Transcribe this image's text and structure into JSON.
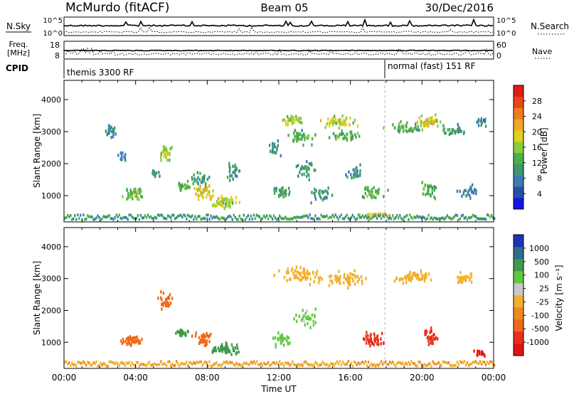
{
  "header": {
    "station": "McMurdo (fitACF)",
    "beam": "Beam 05",
    "date": "30/Dec/2016"
  },
  "chart_data": [
    {
      "panel": "noise",
      "type": "line",
      "left_label": "N.Sky",
      "right_label": "N.Search",
      "left_ticks": [
        "10^5",
        "10^0"
      ],
      "right_ticks": [
        "10^5",
        "10^0"
      ]
    },
    {
      "panel": "frequency",
      "type": "line",
      "left_label": "Freq.",
      "left_unit": "[MHz]",
      "left_ticks": [
        "18",
        "8"
      ],
      "right_label": "Nave",
      "right_ticks": [
        "60",
        "0"
      ]
    },
    {
      "panel": "cpid",
      "type": "table",
      "label": "CPID",
      "segments": [
        {
          "start_h": 0,
          "end_h": 18,
          "text": "themis 3300 RF"
        },
        {
          "start_h": 18,
          "end_h": 24,
          "text": "normal (fast) 151 RF"
        }
      ]
    },
    {
      "panel": "power",
      "type": "heatmap",
      "ylabel": "Slant Range [km]",
      "ylim": [
        180,
        4600
      ],
      "y_ticks": [
        1000,
        2000,
        3000,
        4000
      ],
      "xlim": [
        0,
        24
      ],
      "colorbar": {
        "label": "Power [dB]",
        "ticks": [
          4,
          8,
          12,
          16,
          20,
          24,
          28
        ],
        "colors": [
          "#1414e6",
          "#2850a8",
          "#3c7cb4",
          "#3e9670",
          "#4ab04a",
          "#8ccc3c",
          "#e0d020",
          "#f0a828",
          "#f07c1c",
          "#e84818",
          "#e01e14"
        ]
      },
      "clusters": [
        {
          "t": 2.6,
          "r": 3000,
          "dt": 0.5,
          "dr": 250,
          "v": 8,
          "n": 20
        },
        {
          "t": 3.2,
          "r": 2200,
          "dt": 0.4,
          "dr": 200,
          "v": 8,
          "n": 12
        },
        {
          "t": 3.8,
          "r": 1050,
          "dt": 0.8,
          "dr": 250,
          "v": 13,
          "n": 45
        },
        {
          "t": 5.6,
          "r": 2300,
          "dt": 0.5,
          "dr": 350,
          "v": 15,
          "n": 30
        },
        {
          "t": 5.0,
          "r": 1700,
          "dt": 0.4,
          "dr": 200,
          "v": 9,
          "n": 12
        },
        {
          "t": 6.6,
          "r": 1300,
          "dt": 0.6,
          "dr": 200,
          "v": 12,
          "n": 25
        },
        {
          "t": 7.8,
          "r": 1100,
          "dt": 0.8,
          "dr": 350,
          "v": 18,
          "n": 45
        },
        {
          "t": 7.5,
          "r": 1500,
          "dt": 0.7,
          "dr": 300,
          "v": 10,
          "n": 25
        },
        {
          "t": 9.0,
          "r": 800,
          "dt": 1.0,
          "dr": 250,
          "v": 16,
          "n": 60
        },
        {
          "t": 9.5,
          "r": 1800,
          "dt": 0.6,
          "dr": 500,
          "v": 9,
          "n": 25
        },
        {
          "t": 11.7,
          "r": 2500,
          "dt": 0.6,
          "dr": 300,
          "v": 9,
          "n": 20
        },
        {
          "t": 12.1,
          "r": 1100,
          "dt": 0.8,
          "dr": 300,
          "v": 11,
          "n": 30
        },
        {
          "t": 12.8,
          "r": 3350,
          "dt": 0.9,
          "dr": 200,
          "v": 16,
          "n": 40
        },
        {
          "t": 13.2,
          "r": 2850,
          "dt": 1.0,
          "dr": 300,
          "v": 12,
          "n": 40
        },
        {
          "t": 13.5,
          "r": 1800,
          "dt": 0.8,
          "dr": 400,
          "v": 10,
          "n": 30
        },
        {
          "t": 14.5,
          "r": 1000,
          "dt": 1.0,
          "dr": 300,
          "v": 9,
          "n": 30
        },
        {
          "t": 15.3,
          "r": 3300,
          "dt": 1.3,
          "dr": 250,
          "v": 17,
          "n": 55
        },
        {
          "t": 15.8,
          "r": 2900,
          "dt": 1.2,
          "dr": 200,
          "v": 12,
          "n": 35
        },
        {
          "t": 16.2,
          "r": 1700,
          "dt": 0.7,
          "dr": 350,
          "v": 9,
          "n": 25
        },
        {
          "t": 17.2,
          "r": 1100,
          "dt": 0.9,
          "dr": 300,
          "v": 12,
          "n": 40
        },
        {
          "t": 19.0,
          "r": 3100,
          "dt": 1.3,
          "dr": 250,
          "v": 12,
          "n": 45
        },
        {
          "t": 20.2,
          "r": 3300,
          "dt": 1.0,
          "dr": 250,
          "v": 18,
          "n": 45
        },
        {
          "t": 20.4,
          "r": 1200,
          "dt": 0.6,
          "dr": 350,
          "v": 12,
          "n": 30
        },
        {
          "t": 21.7,
          "r": 3050,
          "dt": 1.0,
          "dr": 200,
          "v": 10,
          "n": 30
        },
        {
          "t": 22.5,
          "r": 1100,
          "dt": 1.0,
          "dr": 300,
          "v": 8,
          "n": 25
        },
        {
          "t": 23.3,
          "r": 3300,
          "dt": 0.6,
          "dr": 200,
          "v": 8,
          "n": 15
        },
        {
          "t": 17.4,
          "r": 400,
          "dt": 1.2,
          "dr": 60,
          "v": 20,
          "n": 25
        }
      ]
    },
    {
      "panel": "velocity",
      "type": "heatmap",
      "ylabel": "Slant Range [km]",
      "ylim": [
        180,
        4600
      ],
      "y_ticks": [
        1000,
        2000,
        3000,
        4000
      ],
      "xlim": [
        0,
        24
      ],
      "xlabel": "Time UT",
      "x_ticks": [
        "00:00",
        "04:00",
        "08:00",
        "12:00",
        "16:00",
        "20:00",
        "00:00"
      ],
      "colorbar": {
        "label": "Velocity [m s⁻¹]",
        "ticks": [
          "1000",
          "500",
          "100",
          "25",
          "-25",
          "-100",
          "-500",
          "-1000"
        ],
        "colors": [
          "#1e32b4",
          "#2e6e8a",
          "#3e9a4e",
          "#60c83c",
          "#c8c8c8",
          "#f0b030",
          "#f08820",
          "#f06818",
          "#e83018",
          "#e01414"
        ]
      },
      "clusters": [
        {
          "t": 3.8,
          "r": 1050,
          "dt": 0.8,
          "dr": 250,
          "v": -150,
          "n": 45
        },
        {
          "t": 5.6,
          "r": 2300,
          "dt": 0.5,
          "dr": 350,
          "v": -200,
          "n": 30
        },
        {
          "t": 6.6,
          "r": 1300,
          "dt": 0.6,
          "dr": 200,
          "v": 120,
          "n": 25
        },
        {
          "t": 7.8,
          "r": 1100,
          "dt": 0.8,
          "dr": 350,
          "v": -180,
          "n": 40
        },
        {
          "t": 9.0,
          "r": 800,
          "dt": 1.0,
          "dr": 250,
          "v": 150,
          "n": 55
        },
        {
          "t": 12.1,
          "r": 1100,
          "dt": 0.8,
          "dr": 300,
          "v": 80,
          "n": 30
        },
        {
          "t": 13.5,
          "r": 1800,
          "dt": 0.8,
          "dr": 400,
          "v": 60,
          "n": 30
        },
        {
          "t": 13.2,
          "r": 3100,
          "dt": 1.6,
          "dr": 350,
          "v": 10,
          "n": 70
        },
        {
          "t": 15.5,
          "r": 3000,
          "dt": 1.6,
          "dr": 300,
          "v": 5,
          "n": 60
        },
        {
          "t": 17.2,
          "r": 1100,
          "dt": 0.9,
          "dr": 300,
          "v": -400,
          "n": 45
        },
        {
          "t": 19.5,
          "r": 3050,
          "dt": 1.5,
          "dr": 250,
          "v": 0,
          "n": 55
        },
        {
          "t": 20.4,
          "r": 1200,
          "dt": 0.6,
          "dr": 350,
          "v": -450,
          "n": 30
        },
        {
          "t": 22.3,
          "r": 3000,
          "dt": 1.0,
          "dr": 250,
          "v": 0,
          "n": 30
        },
        {
          "t": 23.2,
          "r": 650,
          "dt": 0.6,
          "dr": 150,
          "v": -600,
          "n": 15
        }
      ]
    }
  ]
}
